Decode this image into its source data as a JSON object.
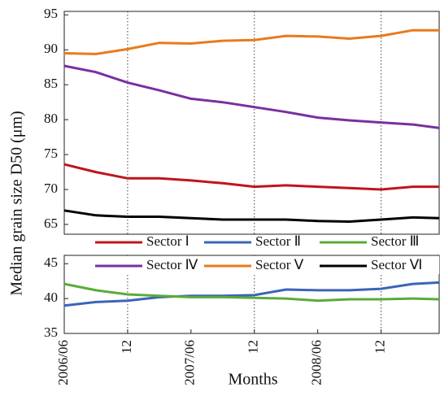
{
  "chart_data": [
    {
      "type": "line",
      "ylabel": "Median grain size D50 (μm)",
      "x": [
        0,
        3,
        6,
        9,
        12,
        15,
        18,
        21,
        24,
        27,
        30,
        33,
        35.5
      ],
      "xlim": [
        0,
        35.5
      ],
      "vlines": [
        6,
        18,
        30
      ],
      "ylim": [
        63.6,
        95.5
      ],
      "yticks": [
        65,
        70,
        75,
        80,
        85,
        90,
        95
      ],
      "series": [
        {
          "name": "Sector Ⅰ",
          "color": "#c0141c",
          "values": [
            73.6,
            72.5,
            71.6,
            71.6,
            71.3,
            70.9,
            70.4,
            70.6,
            70.4,
            70.2,
            70.0,
            70.4,
            70.4
          ]
        },
        {
          "name": "Sector Ⅳ",
          "color": "#7b2fa0",
          "values": [
            87.7,
            86.8,
            85.3,
            84.2,
            83.0,
            82.5,
            81.8,
            81.1,
            80.3,
            79.9,
            79.6,
            79.3,
            78.8
          ]
        },
        {
          "name": "Sector Ⅴ",
          "color": "#e87b1c",
          "values": [
            89.5,
            89.4,
            90.1,
            91.0,
            90.9,
            91.3,
            91.4,
            92.0,
            91.9,
            91.6,
            92.0,
            92.8,
            92.8
          ]
        },
        {
          "name": "Sector Ⅵ",
          "color": "#000000",
          "values": [
            67.0,
            66.3,
            66.1,
            66.1,
            65.9,
            65.7,
            65.7,
            65.7,
            65.5,
            65.4,
            65.7,
            66.0,
            65.9
          ]
        }
      ]
    },
    {
      "type": "line",
      "xlabel": "Months",
      "x": [
        0,
        3,
        6,
        9,
        12,
        15,
        18,
        21,
        24,
        27,
        30,
        33,
        35.5
      ],
      "xlim": [
        0,
        35.5
      ],
      "xticks": [
        {
          "value": 0,
          "label": "2006/06"
        },
        {
          "value": 6,
          "label": "12"
        },
        {
          "value": 12,
          "label": "2007/06"
        },
        {
          "value": 18,
          "label": "12"
        },
        {
          "value": 24,
          "label": "2008/06"
        },
        {
          "value": 30,
          "label": "12"
        }
      ],
      "vlines": [
        6,
        18,
        30
      ],
      "ylim": [
        35,
        46.2
      ],
      "yticks": [
        35,
        40,
        45
      ],
      "series": [
        {
          "name": "Sector Ⅱ",
          "color": "#3a65b7",
          "values": [
            39.0,
            39.5,
            39.7,
            40.2,
            40.4,
            40.4,
            40.5,
            41.3,
            41.2,
            41.2,
            41.4,
            42.1,
            42.3
          ]
        },
        {
          "name": "Sector Ⅲ",
          "color": "#5aab3a",
          "values": [
            42.1,
            41.2,
            40.6,
            40.4,
            40.2,
            40.2,
            40.1,
            40.0,
            39.7,
            39.9,
            39.9,
            40.0,
            39.9
          ]
        }
      ]
    }
  ]
}
